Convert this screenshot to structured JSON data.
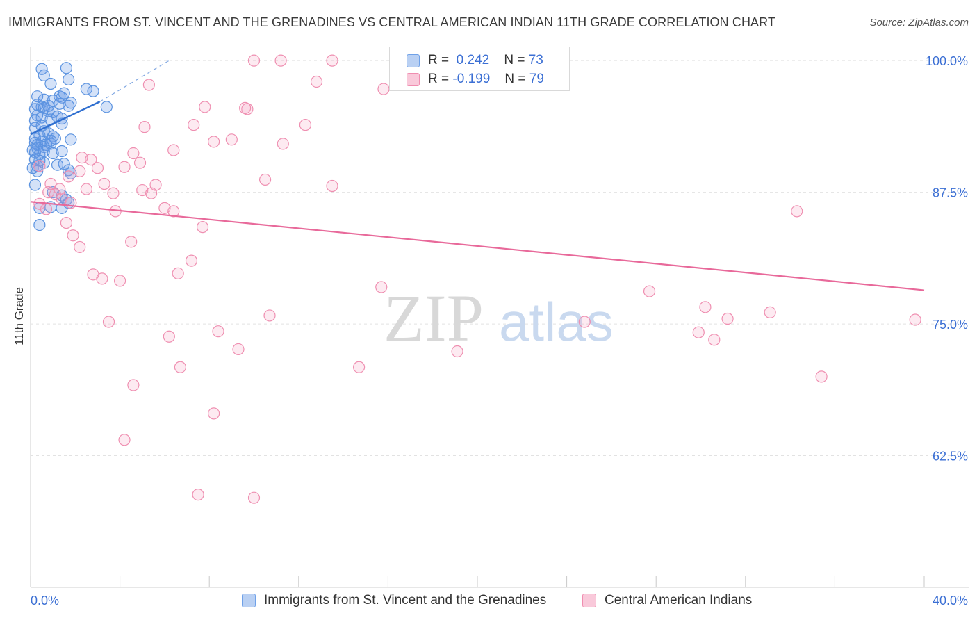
{
  "title": "IMMIGRANTS FROM ST. VINCENT AND THE GRENADINES VS CENTRAL AMERICAN INDIAN 11TH GRADE CORRELATION CHART",
  "source": "Source: ZipAtlas.com",
  "watermark": {
    "zip": "ZIP",
    "atlas": "atlas"
  },
  "stats": [
    {
      "r_label": "R =",
      "r_value": "0.242",
      "n_label": "N =",
      "n_value": "73",
      "color": "#6fa1e8"
    },
    {
      "r_label": "R =",
      "r_value": "-0.199",
      "n_label": "N =",
      "n_value": "79",
      "color": "#f08db0"
    }
  ],
  "colors": {
    "blue": "#5b93e0",
    "pink": "#ef8fb1",
    "blue_line": "#2f6fd0",
    "pink_line": "#e8699a",
    "tick_text": "#3b6fd4"
  },
  "chart_data": {
    "type": "scatter",
    "title": "IMMIGRANTS FROM ST. VINCENT AND THE GRENADINES VS CENTRAL AMERICAN INDIAN 11TH GRADE CORRELATION CHART",
    "xlabel": "",
    "ylabel": "11th Grade",
    "xlim": [
      0,
      40
    ],
    "ylim": [
      50,
      101
    ],
    "x_tick_labels": [
      "0.0%",
      "40.0%"
    ],
    "y_ticks": [
      62.5,
      75.0,
      87.5,
      100.0
    ],
    "y_tick_labels": [
      "62.5%",
      "75.0%",
      "87.5%",
      "100.0%"
    ],
    "grid": true,
    "legend_position": "bottom",
    "series": [
      {
        "name": "Immigrants from St. Vincent and the Grenadines",
        "color": "#5b93e0",
        "trend": {
          "x": [
            0.0,
            3.1
          ],
          "y": [
            93.0,
            96.1
          ],
          "extended_to": [
            6.2,
            100.0
          ]
        },
        "points": [
          [
            0.5,
            99.2
          ],
          [
            0.6,
            98.6
          ],
          [
            1.6,
            99.3
          ],
          [
            1.7,
            98.2
          ],
          [
            0.9,
            97.8
          ],
          [
            2.5,
            97.3
          ],
          [
            2.8,
            97.1
          ],
          [
            0.3,
            96.6
          ],
          [
            0.6,
            96.3
          ],
          [
            1.0,
            96.2
          ],
          [
            1.3,
            96.6
          ],
          [
            1.4,
            96.5
          ],
          [
            1.5,
            96.9
          ],
          [
            1.8,
            96.0
          ],
          [
            1.7,
            95.7
          ],
          [
            3.4,
            95.6
          ],
          [
            0.3,
            95.8
          ],
          [
            0.5,
            95.6
          ],
          [
            0.6,
            95.5
          ],
          [
            0.8,
            95.2
          ],
          [
            0.2,
            95.4
          ],
          [
            1.0,
            95.1
          ],
          [
            0.3,
            94.8
          ],
          [
            0.5,
            94.6
          ],
          [
            0.9,
            94.4
          ],
          [
            1.2,
            94.7
          ],
          [
            1.4,
            94.5
          ],
          [
            0.2,
            94.3
          ],
          [
            1.4,
            94.0
          ],
          [
            0.2,
            93.6
          ],
          [
            0.6,
            93.3
          ],
          [
            0.8,
            93.1
          ],
          [
            0.4,
            92.9
          ],
          [
            0.2,
            92.6
          ],
          [
            1.0,
            92.8
          ],
          [
            1.1,
            92.6
          ],
          [
            1.8,
            92.5
          ],
          [
            0.2,
            92.2
          ],
          [
            0.3,
            92.0
          ],
          [
            0.5,
            92.3
          ],
          [
            0.7,
            92.0
          ],
          [
            0.9,
            92.1
          ],
          [
            0.6,
            91.8
          ],
          [
            0.3,
            91.7
          ],
          [
            0.1,
            91.5
          ],
          [
            0.2,
            91.3
          ],
          [
            0.4,
            91.1
          ],
          [
            0.6,
            91.4
          ],
          [
            1.0,
            91.2
          ],
          [
            1.4,
            91.4
          ],
          [
            0.2,
            90.6
          ],
          [
            0.4,
            90.5
          ],
          [
            0.6,
            90.3
          ],
          [
            1.2,
            90.1
          ],
          [
            1.5,
            90.2
          ],
          [
            0.1,
            89.8
          ],
          [
            0.3,
            89.5
          ],
          [
            1.7,
            89.6
          ],
          [
            1.8,
            89.3
          ],
          [
            0.2,
            88.2
          ],
          [
            1.0,
            87.5
          ],
          [
            1.4,
            87.2
          ],
          [
            1.6,
            86.8
          ],
          [
            1.7,
            86.5
          ],
          [
            0.4,
            86.0
          ],
          [
            0.9,
            86.1
          ],
          [
            1.4,
            86.0
          ],
          [
            0.4,
            84.4
          ],
          [
            0.5,
            93.8
          ],
          [
            1.3,
            95.9
          ],
          [
            0.8,
            95.7
          ],
          [
            0.9,
            92.4
          ],
          [
            0.3,
            90.0
          ]
        ]
      },
      {
        "name": "Central American Indians",
        "color": "#ef8fb1",
        "trend": {
          "x": [
            0.0,
            40.0
          ],
          "y": [
            86.6,
            78.2
          ]
        },
        "points": [
          [
            10.0,
            100.0
          ],
          [
            11.2,
            100.0
          ],
          [
            13.5,
            100.0
          ],
          [
            22.7,
            100.0
          ],
          [
            12.8,
            98.0
          ],
          [
            5.3,
            97.7
          ],
          [
            15.8,
            97.3
          ],
          [
            7.8,
            95.6
          ],
          [
            9.7,
            95.4
          ],
          [
            5.1,
            93.7
          ],
          [
            7.3,
            93.9
          ],
          [
            12.3,
            93.9
          ],
          [
            8.2,
            92.3
          ],
          [
            11.3,
            92.1
          ],
          [
            9.0,
            92.5
          ],
          [
            6.4,
            91.5
          ],
          [
            2.3,
            90.8
          ],
          [
            2.7,
            90.6
          ],
          [
            4.9,
            90.3
          ],
          [
            3.0,
            89.8
          ],
          [
            4.2,
            89.9
          ],
          [
            0.4,
            90.0
          ],
          [
            1.7,
            89.0
          ],
          [
            3.3,
            88.3
          ],
          [
            5.6,
            88.2
          ],
          [
            10.5,
            88.7
          ],
          [
            13.5,
            88.1
          ],
          [
            2.5,
            87.8
          ],
          [
            0.9,
            88.3
          ],
          [
            1.3,
            87.8
          ],
          [
            3.7,
            87.4
          ],
          [
            5.0,
            87.7
          ],
          [
            5.4,
            87.4
          ],
          [
            0.8,
            87.5
          ],
          [
            1.1,
            87.3
          ],
          [
            1.4,
            86.9
          ],
          [
            1.8,
            86.5
          ],
          [
            0.4,
            86.4
          ],
          [
            6.0,
            86.0
          ],
          [
            6.4,
            85.7
          ],
          [
            3.8,
            85.7
          ],
          [
            1.6,
            84.6
          ],
          [
            7.7,
            84.2
          ],
          [
            1.9,
            83.4
          ],
          [
            4.5,
            82.8
          ],
          [
            2.2,
            82.3
          ],
          [
            7.2,
            81.0
          ],
          [
            6.6,
            79.8
          ],
          [
            2.8,
            79.7
          ],
          [
            3.2,
            79.3
          ],
          [
            4.0,
            79.1
          ],
          [
            15.7,
            78.5
          ],
          [
            27.7,
            78.1
          ],
          [
            30.2,
            76.6
          ],
          [
            10.7,
            75.8
          ],
          [
            33.1,
            76.1
          ],
          [
            31.2,
            75.5
          ],
          [
            24.8,
            75.2
          ],
          [
            39.6,
            75.4
          ],
          [
            3.5,
            75.2
          ],
          [
            8.4,
            74.3
          ],
          [
            29.9,
            74.2
          ],
          [
            30.6,
            73.5
          ],
          [
            6.2,
            73.8
          ],
          [
            9.3,
            72.6
          ],
          [
            19.1,
            72.4
          ],
          [
            6.7,
            70.9
          ],
          [
            14.7,
            70.9
          ],
          [
            35.4,
            70.0
          ],
          [
            4.6,
            69.2
          ],
          [
            8.2,
            66.5
          ],
          [
            4.2,
            64.0
          ],
          [
            7.5,
            58.8
          ],
          [
            10.0,
            58.5
          ],
          [
            34.3,
            85.7
          ],
          [
            9.6,
            95.5
          ],
          [
            2.2,
            89.5
          ],
          [
            4.6,
            91.2
          ],
          [
            0.7,
            85.9
          ]
        ]
      }
    ]
  }
}
